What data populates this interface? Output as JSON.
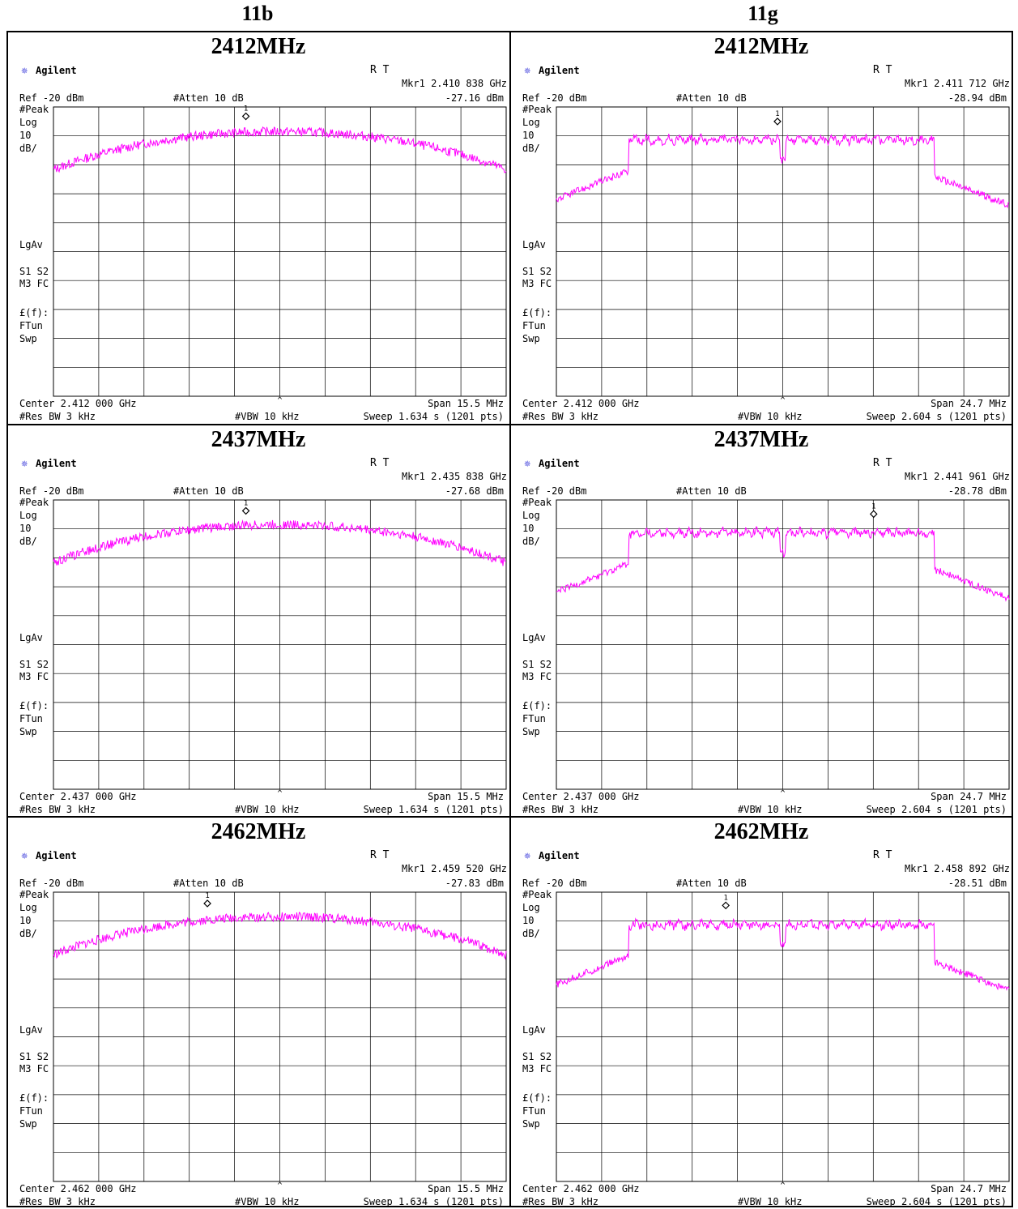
{
  "columns": [
    "11b",
    "11g"
  ],
  "panels": [
    {
      "title": "2412MHz",
      "left": {
        "brand": "Agilent",
        "rt": "R   T",
        "marker_freq": "Mkr1  2.410 838 GHz",
        "marker_level": "-27.16 dBm",
        "ref": "Ref -20 dBm",
        "atten": "#Atten 10 dB",
        "side": [
          "#Peak",
          "Log",
          "10",
          "dB/",
          "LgAv",
          "S1  S2",
          "M3 FC",
          "£(f):",
          "FTun",
          "Swp"
        ],
        "center": "Center 2.412 000 GHz",
        "span": "Span 15.5 MHz",
        "rbw": "#Res BW 3 kHz",
        "vbw": "#VBW 10 kHz",
        "sweep": "Sweep 1.634 s (1201 pts)",
        "marker_label": "1"
      },
      "right": {
        "brand": "Agilent",
        "rt": "R   T",
        "marker_freq": "Mkr1  2.411 712 GHz",
        "marker_level": "-28.94 dBm",
        "ref": "Ref -20 dBm",
        "atten": "#Atten 10 dB",
        "side": [
          "#Peak",
          "Log",
          "10",
          "dB/",
          "LgAv",
          "S1  S2",
          "M3 FC",
          "£(f):",
          "FTun",
          "Swp"
        ],
        "center": "Center 2.412 000 GHz",
        "span": "Span 24.7 MHz",
        "rbw": "#Res BW 3 kHz",
        "vbw": "#VBW 10 kHz",
        "sweep": "Sweep 2.604 s (1201 pts)",
        "marker_label": "1"
      }
    },
    {
      "title": "2437MHz",
      "left": {
        "brand": "Agilent",
        "rt": "R   T",
        "marker_freq": "Mkr1  2.435 838 GHz",
        "marker_level": "-27.68 dBm",
        "ref": "Ref -20 dBm",
        "atten": "#Atten 10 dB",
        "side": [
          "#Peak",
          "Log",
          "10",
          "dB/",
          "LgAv",
          "S1  S2",
          "M3 FC",
          "£(f):",
          "FTun",
          "Swp"
        ],
        "center": "Center 2.437 000 GHz",
        "span": "Span 15.5 MHz",
        "rbw": "#Res BW 3 kHz",
        "vbw": "#VBW 10 kHz",
        "sweep": "Sweep 1.634 s (1201 pts)",
        "marker_label": "1"
      },
      "right": {
        "brand": "Agilent",
        "rt": "R   T",
        "marker_freq": "Mkr1  2.441 961 GHz",
        "marker_level": "-28.78 dBm",
        "ref": "Ref -20 dBm",
        "atten": "#Atten 10 dB",
        "side": [
          "#Peak",
          "Log",
          "10",
          "dB/",
          "LgAv",
          "S1  S2",
          "M3 FC",
          "£(f):",
          "FTun",
          "Swp"
        ],
        "center": "Center 2.437 000 GHz",
        "span": "Span 24.7 MHz",
        "rbw": "#Res BW 3 kHz",
        "vbw": "#VBW 10 kHz",
        "sweep": "Sweep 2.604 s (1201 pts)",
        "marker_label": "1"
      }
    },
    {
      "title": "2462MHz",
      "left": {
        "brand": "Agilent",
        "rt": "R   T",
        "marker_freq": "Mkr1  2.459 520 GHz",
        "marker_level": "-27.83 dBm",
        "ref": "Ref -20 dBm",
        "atten": "#Atten 10 dB",
        "side": [
          "#Peak",
          "Log",
          "10",
          "dB/",
          "LgAv",
          "S1  S2",
          "M3 FC",
          "£(f):",
          "FTun",
          "Swp"
        ],
        "center": "Center 2.462 000 GHz",
        "span": "Span 15.5 MHz",
        "rbw": "#Res BW 3 kHz",
        "vbw": "#VBW 10 kHz",
        "sweep": "Sweep 1.634 s (1201 pts)",
        "marker_label": "1"
      },
      "right": {
        "brand": "Agilent",
        "rt": "R   T",
        "marker_freq": "Mkr1  2.458 892 GHz",
        "marker_level": "-28.51 dBm",
        "ref": "Ref -20 dBm",
        "atten": "#Atten 10 dB",
        "side": [
          "#Peak",
          "Log",
          "10",
          "dB/",
          "LgAv",
          "S1  S2",
          "M3 FC",
          "£(f):",
          "FTun",
          "Swp"
        ],
        "center": "Center 2.462 000 GHz",
        "span": "Span 24.7 MHz",
        "rbw": "#Res BW 3 kHz",
        "vbw": "#VBW 10 kHz",
        "sweep": "Sweep 2.604 s (1201 pts)",
        "marker_label": "1"
      }
    }
  ],
  "colors": {
    "trace": "#ff00ff",
    "grid": "#000000",
    "background": "#ffffff"
  },
  "chart_data": [
    {
      "type": "line",
      "mode": "11b",
      "center_ghz": 2.412,
      "span_mhz": 15.5,
      "ref_dbm": -20,
      "scale_db_per_div": 10,
      "marker": {
        "x_ghz": 2.410838,
        "y_dbm": -27.16
      },
      "shape": "dsss"
    },
    {
      "type": "line",
      "mode": "11g",
      "center_ghz": 2.412,
      "span_mhz": 24.7,
      "ref_dbm": -20,
      "scale_db_per_div": 10,
      "marker": {
        "x_ghz": 2.411712,
        "y_dbm": -28.94
      },
      "shape": "ofdm"
    },
    {
      "type": "line",
      "mode": "11b",
      "center_ghz": 2.437,
      "span_mhz": 15.5,
      "ref_dbm": -20,
      "scale_db_per_div": 10,
      "marker": {
        "x_ghz": 2.435838,
        "y_dbm": -27.68
      },
      "shape": "dsss"
    },
    {
      "type": "line",
      "mode": "11g",
      "center_ghz": 2.437,
      "span_mhz": 24.7,
      "ref_dbm": -20,
      "scale_db_per_div": 10,
      "marker": {
        "x_ghz": 2.441961,
        "y_dbm": -28.78
      },
      "shape": "ofdm"
    },
    {
      "type": "line",
      "mode": "11b",
      "center_ghz": 2.462,
      "span_mhz": 15.5,
      "ref_dbm": -20,
      "scale_db_per_div": 10,
      "marker": {
        "x_ghz": 2.45952,
        "y_dbm": -27.83
      },
      "shape": "dsss"
    },
    {
      "type": "line",
      "mode": "11g",
      "center_ghz": 2.462,
      "span_mhz": 24.7,
      "ref_dbm": -20,
      "scale_db_per_div": 10,
      "marker": {
        "x_ghz": 2.458892,
        "y_dbm": -28.51
      },
      "shape": "ofdm"
    }
  ]
}
